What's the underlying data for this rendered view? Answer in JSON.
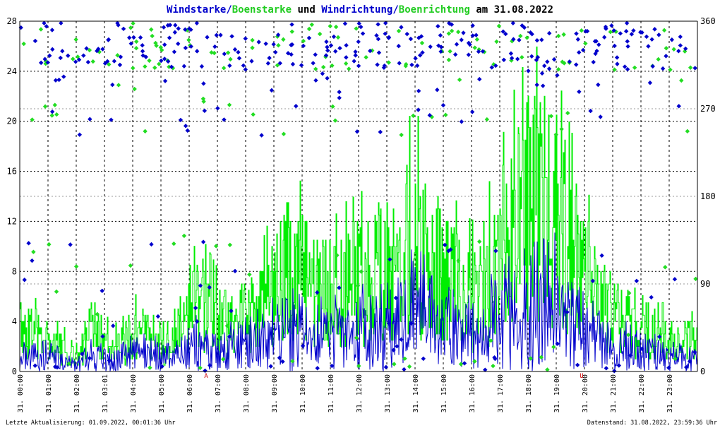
{
  "title_parts": [
    {
      "text": "Windstarke",
      "color": "#0000cc"
    },
    {
      "text": "/",
      "color": "#0000cc"
    },
    {
      "text": "Boenstarke",
      "color": "#22cc22"
    },
    {
      "text": " und ",
      "color": "#000000"
    },
    {
      "text": "Windrichtung",
      "color": "#0000cc"
    },
    {
      "text": "/",
      "color": "#0000cc"
    },
    {
      "text": "Boenrichtung",
      "color": "#22cc22"
    },
    {
      "text": " am 31.08.2022",
      "color": "#000000"
    }
  ],
  "footer": {
    "left": "Letzte Aktualisierung: 01.09.2022, 00:01:36 Uhr",
    "right": "Datenstand: 31.08.2022, 23:59:36 Uhr"
  },
  "colors": {
    "wind": "#0000cc",
    "gust": "#00ee00",
    "grid": "#000000",
    "marker": "#cc0000"
  },
  "chart_data": {
    "type": "line",
    "y_left": {
      "min": 0,
      "max": 28,
      "ticks": [
        0,
        4,
        8,
        12,
        16,
        20,
        24,
        28
      ]
    },
    "y_right": {
      "min": 0,
      "max": 360,
      "ticks": [
        0,
        90,
        180,
        270,
        360
      ]
    },
    "x": {
      "min": 0,
      "max": 24,
      "unit": "hour"
    },
    "x_tick_labels": [
      "31. 00:00",
      "31. 01:00",
      "31. 02:00",
      "31. 03:01",
      "31. 04:00",
      "31. 05:00",
      "31. 06:00",
      "31. 07:00",
      "31. 08:00",
      "31. 09:00",
      "31. 10:00",
      "31. 11:00",
      "31. 12:00",
      "31. 13:00",
      "31. 14:00",
      "31. 15:00",
      "31. 16:00",
      "31. 17:00",
      "31. 18:00",
      "31. 19:00",
      "31. 20:00",
      "31. 21:00",
      "31. 22:00",
      "31. 23:00"
    ],
    "markers": [
      {
        "label": "A",
        "hour": 6.6
      },
      {
        "label": "U",
        "hour": 19.9
      }
    ],
    "gust_envelope": [
      [
        0.0,
        4.5
      ],
      [
        0.5,
        4.0
      ],
      [
        1.0,
        3.0
      ],
      [
        1.5,
        2.5
      ],
      [
        2.0,
        1.5
      ],
      [
        2.5,
        5.0
      ],
      [
        3.0,
        3.0
      ],
      [
        3.5,
        2.5
      ],
      [
        4.0,
        4.0
      ],
      [
        4.5,
        4.5
      ],
      [
        5.0,
        3.0
      ],
      [
        5.5,
        4.0
      ],
      [
        6.0,
        6.5
      ],
      [
        6.5,
        7.0
      ],
      [
        7.0,
        5.5
      ],
      [
        7.5,
        5.0
      ],
      [
        8.0,
        6.0
      ],
      [
        8.5,
        6.5
      ],
      [
        9.0,
        9.0
      ],
      [
        9.5,
        11.0
      ],
      [
        10.0,
        10.0
      ],
      [
        10.5,
        8.5
      ],
      [
        11.0,
        8.0
      ],
      [
        11.5,
        9.0
      ],
      [
        12.0,
        9.5
      ],
      [
        12.5,
        10.0
      ],
      [
        13.0,
        11.0
      ],
      [
        13.5,
        13.0
      ],
      [
        14.0,
        14.0
      ],
      [
        14.5,
        12.0
      ],
      [
        15.0,
        10.0
      ],
      [
        15.5,
        9.0
      ],
      [
        16.0,
        8.0
      ],
      [
        16.5,
        9.5
      ],
      [
        17.0,
        12.0
      ],
      [
        17.5,
        15.0
      ],
      [
        18.0,
        17.0
      ],
      [
        18.5,
        17.5
      ],
      [
        19.0,
        16.0
      ],
      [
        19.5,
        13.0
      ],
      [
        20.0,
        10.0
      ],
      [
        20.5,
        8.0
      ],
      [
        21.0,
        6.0
      ],
      [
        21.5,
        5.0
      ],
      [
        22.0,
        4.0
      ],
      [
        22.5,
        4.5
      ],
      [
        23.0,
        4.5
      ],
      [
        23.5,
        3.5
      ],
      [
        24.0,
        3.0
      ]
    ],
    "wind_envelope": [
      [
        0.0,
        1.5
      ],
      [
        0.5,
        1.5
      ],
      [
        1.0,
        1.5
      ],
      [
        1.5,
        1.0
      ],
      [
        2.0,
        0.5
      ],
      [
        2.5,
        1.5
      ],
      [
        3.0,
        1.2
      ],
      [
        3.5,
        1.0
      ],
      [
        4.0,
        1.5
      ],
      [
        4.5,
        1.8
      ],
      [
        5.0,
        1.2
      ],
      [
        5.5,
        1.5
      ],
      [
        6.0,
        2.0
      ],
      [
        6.5,
        2.5
      ],
      [
        7.0,
        2.0
      ],
      [
        7.5,
        2.0
      ],
      [
        8.0,
        2.5
      ],
      [
        8.5,
        2.5
      ],
      [
        9.0,
        3.0
      ],
      [
        9.5,
        3.5
      ],
      [
        10.0,
        3.0
      ],
      [
        10.5,
        3.0
      ],
      [
        11.0,
        3.0
      ],
      [
        11.5,
        3.2
      ],
      [
        12.0,
        3.5
      ],
      [
        12.5,
        3.5
      ],
      [
        13.0,
        3.5
      ],
      [
        13.5,
        4.5
      ],
      [
        14.0,
        5.0
      ],
      [
        14.5,
        4.5
      ],
      [
        15.0,
        3.5
      ],
      [
        15.5,
        3.2
      ],
      [
        16.0,
        3.0
      ],
      [
        16.5,
        3.5
      ],
      [
        17.0,
        4.5
      ],
      [
        17.5,
        5.5
      ],
      [
        18.0,
        6.0
      ],
      [
        18.5,
        6.0
      ],
      [
        19.0,
        5.5
      ],
      [
        19.5,
        4.5
      ],
      [
        20.0,
        3.5
      ],
      [
        20.5,
        3.0
      ],
      [
        21.0,
        2.2
      ],
      [
        21.5,
        2.0
      ],
      [
        22.0,
        1.5
      ],
      [
        22.5,
        1.5
      ],
      [
        23.0,
        1.5
      ],
      [
        23.5,
        1.2
      ],
      [
        24.0,
        1.0
      ]
    ],
    "series": [
      {
        "name": "Windstarke",
        "axis": "left",
        "color": "#0000cc",
        "style": "line"
      },
      {
        "name": "Boenstarke",
        "axis": "left",
        "color": "#00ee00",
        "style": "line"
      },
      {
        "name": "Windrichtung",
        "axis": "right",
        "color": "#0000cc",
        "style": "points"
      },
      {
        "name": "Boenrichtung",
        "axis": "right",
        "color": "#22cc22",
        "style": "points"
      }
    ]
  }
}
